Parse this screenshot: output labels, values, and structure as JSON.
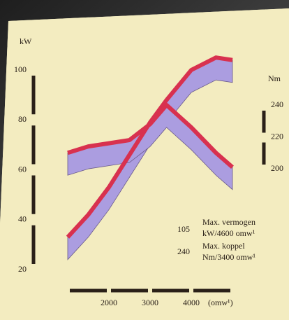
{
  "chart_data": {
    "type": "line",
    "x": [
      1000,
      1500,
      2000,
      2500,
      3000,
      3400,
      4000,
      4600,
      5000
    ],
    "series": [
      {
        "name": "kW",
        "color": "#d8314f",
        "values": [
          33,
          42,
          53,
          66,
          79,
          88,
          100,
          105,
          104
        ]
      },
      {
        "name": "Nm",
        "color": "#d8314f",
        "axis": "y2",
        "values": [
          210,
          214,
          216,
          218,
          228,
          240,
          226,
          210,
          201
        ]
      }
    ],
    "xlim": [
      1000,
      5000
    ],
    "xticks": [
      2000,
      3000,
      4000
    ],
    "xlabel": "(omw¹)",
    "ylim": [
      20,
      100
    ],
    "yticks": [
      20,
      40,
      60,
      80,
      100
    ],
    "ylabel": "kW",
    "y2lim": [
      200,
      240
    ],
    "y2ticks": [
      200,
      220,
      240
    ],
    "y2label": "Nm",
    "band_color": "#ab9de0",
    "annotations": [
      {
        "value": "105",
        "line1": "Max. vermogen",
        "line2": "kW/4600 omw¹"
      },
      {
        "value": "240",
        "line1": "Max. koppel",
        "line2": "Nm/3400 omw¹"
      }
    ]
  }
}
